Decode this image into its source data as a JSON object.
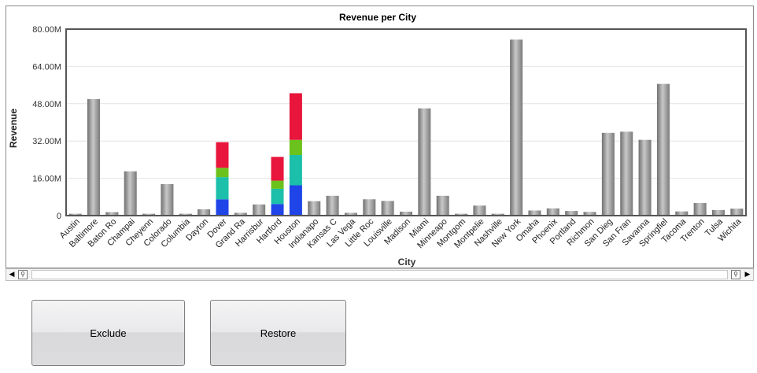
{
  "buttons": {
    "exclude_label": "Exclude",
    "restore_label": "Restore"
  },
  "scrollbar": {
    "left_arrow": "◀",
    "right_arrow": "▶",
    "zoom_icon": "⚲"
  },
  "chart_data": {
    "type": "bar",
    "title": "Revenue per City",
    "xlabel": "City",
    "ylabel": "Revenue",
    "ylim": [
      0,
      80000000
    ],
    "y_ticks": [
      0,
      16000000,
      32000000,
      48000000,
      64000000,
      80000000
    ],
    "y_tick_labels": [
      "0",
      "16.00M",
      "32.00M",
      "48.00M",
      "64.00M",
      "80.00M"
    ],
    "grid": true,
    "categories": [
      "Austin",
      "Baltimore",
      "Baton Ro",
      "Champai",
      "Cheyenn",
      "Colorado",
      "Columbia",
      "Dayton",
      "Dover",
      "Grand Ra",
      "Harrisbur",
      "Hartford",
      "Houston",
      "Indianapo",
      "Kansas C",
      "Las Vega",
      "Little Roc",
      "Louisville",
      "Madison",
      "Miami",
      "Minneapo",
      "Montgom",
      "Montpelie",
      "Nashville",
      "New York",
      "Omaha",
      "Phoenix",
      "Portland",
      "Richmon",
      "San Dieg",
      "San Fran",
      "Savanna",
      "Springfiel",
      "Tacoma",
      "Trenton",
      "Tulsa",
      "Wichita"
    ],
    "values": [
      800000,
      50000000,
      1500000,
      19000000,
      800000,
      13500000,
      800000,
      2700000,
      31500000,
      1200000,
      4800000,
      25200000,
      52500000,
      6200000,
      8500000,
      1200000,
      7000000,
      6300000,
      1700000,
      46000000,
      8500000,
      800000,
      4300000,
      800000,
      75500000,
      2200000,
      3100000,
      2000000,
      1600000,
      35500000,
      36000000,
      32500000,
      56500000,
      1800000,
      5400000,
      2400000,
      3000000
    ],
    "stacked": [
      {
        "category": "Dover",
        "segments": [
          {
            "value": 7000000,
            "color": "#1f44e8"
          },
          {
            "value": 9500000,
            "color": "#1bbfaa"
          },
          {
            "value": 4000000,
            "color": "#6cc21c"
          },
          {
            "value": 11000000,
            "color": "#e8153c"
          }
        ]
      },
      {
        "category": "Hartford",
        "segments": [
          {
            "value": 5000000,
            "color": "#1f44e8"
          },
          {
            "value": 6500000,
            "color": "#1bbfaa"
          },
          {
            "value": 3500000,
            "color": "#6cc21c"
          },
          {
            "value": 10200000,
            "color": "#e8153c"
          }
        ]
      },
      {
        "category": "Houston",
        "segments": [
          {
            "value": 13000000,
            "color": "#1f44e8"
          },
          {
            "value": 13000000,
            "color": "#1bbfaa"
          },
          {
            "value": 6500000,
            "color": "#6cc21c"
          },
          {
            "value": 20000000,
            "color": "#e8153c"
          }
        ]
      }
    ],
    "colors": {
      "bar": "#9a9a9a",
      "grid": "#e4e4e4",
      "axis": "#555555"
    }
  }
}
